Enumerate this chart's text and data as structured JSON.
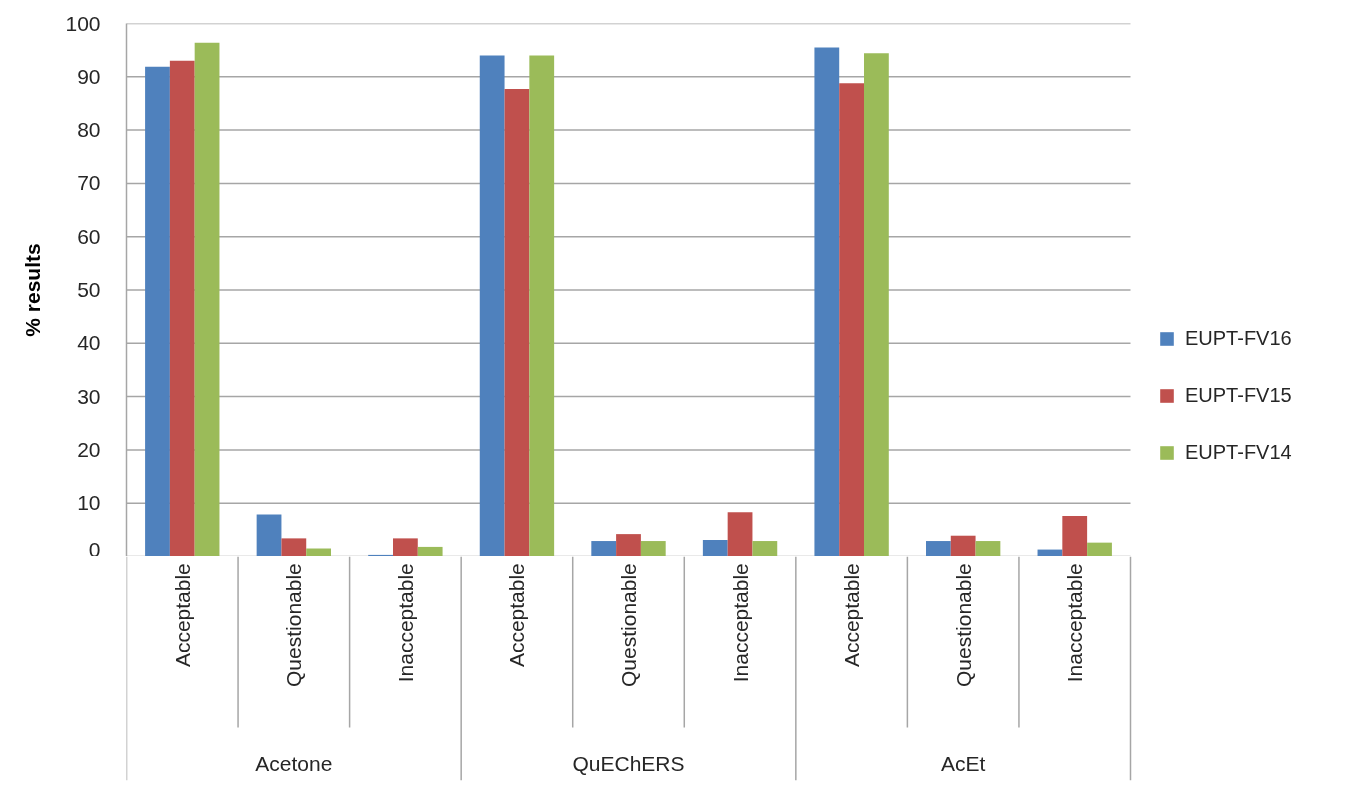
{
  "chart_data": {
    "type": "bar",
    "ylabel": "% results",
    "categories": [
      "Acceptable",
      "Questionable",
      "Inacceptable",
      "Acceptable",
      "Questionable",
      "Inacceptable",
      "Acceptable",
      "Questionable",
      "Inacceptable"
    ],
    "annotations": [
      "Acetone",
      "QuEChERS",
      "AcEt"
    ],
    "series": [
      {
        "name": "EUPT-FV16",
        "color": "#4f81bd",
        "values": [
          91.9,
          7.9,
          0.3,
          94.0,
          2.9,
          3.1,
          95.5,
          2.9,
          1.3
        ]
      },
      {
        "name": "EUPT-FV15",
        "color": "#c0504d",
        "values": [
          93.0,
          3.4,
          3.4,
          87.7,
          4.2,
          8.3,
          88.8,
          3.9,
          7.6
        ]
      },
      {
        "name": "EUPT-FV14",
        "color": "#9bbb59",
        "values": [
          96.4,
          1.5,
          1.8,
          94.0,
          2.9,
          2.9,
          94.4,
          2.9,
          2.6
        ]
      }
    ],
    "ylim": [
      0,
      100
    ],
    "yticks": [
      0,
      10,
      20,
      30,
      40,
      50,
      60,
      70,
      80,
      90,
      100
    ],
    "grid": "y",
    "legend": "right"
  }
}
